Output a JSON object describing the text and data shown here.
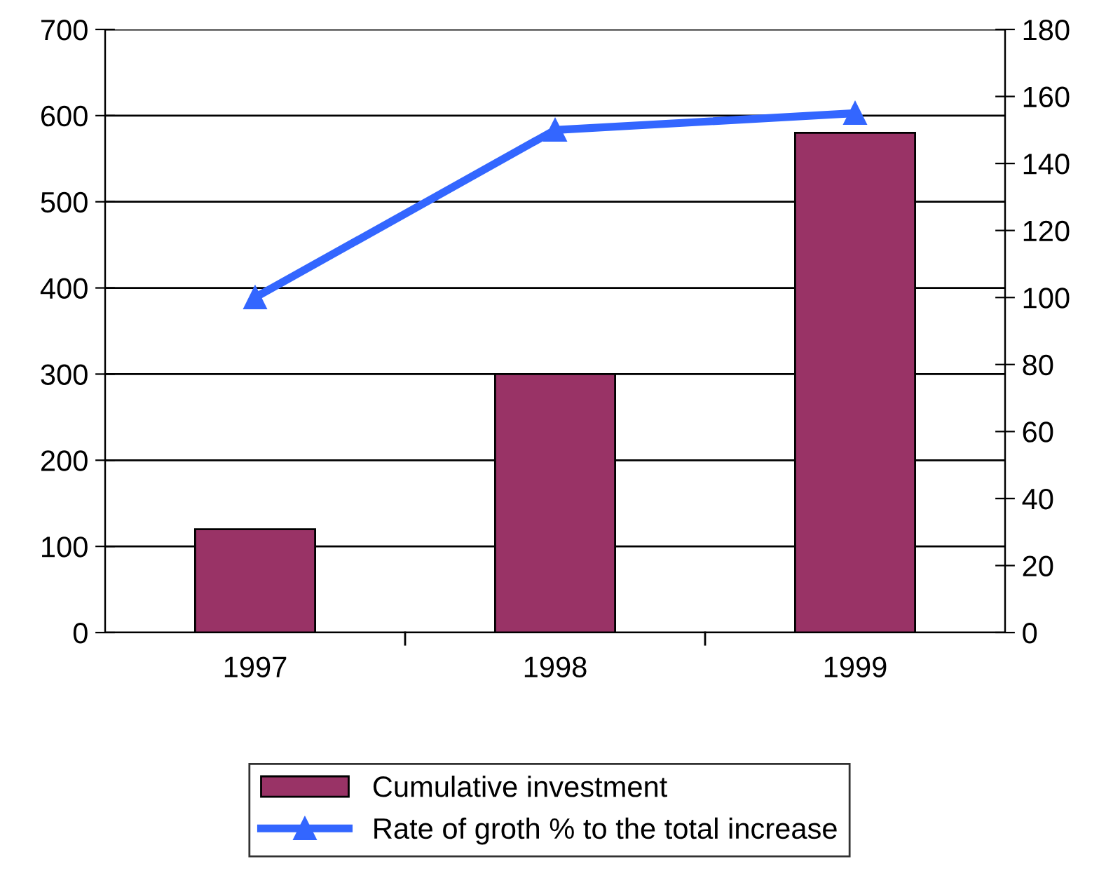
{
  "chart_data": {
    "type": "bar",
    "categories": [
      "1997",
      "1998",
      "1999"
    ],
    "series": [
      {
        "name": "Cumulative investment",
        "color": "#993366",
        "values": [
          120,
          300,
          580
        ]
      },
      {
        "name": "Rate of groth % to the total increase",
        "type": "line",
        "axis": "y2",
        "color": "#3366ff",
        "values": [
          100,
          150,
          155
        ],
        "marker": "triangle",
        "line_style": "solid"
      }
    ],
    "ylim": [
      0,
      700
    ],
    "yticks": [
      0,
      100,
      200,
      300,
      400,
      500,
      600,
      700
    ],
    "y2lim": [
      0,
      180
    ],
    "y2ticks": [
      0,
      20,
      40,
      60,
      80,
      100,
      120,
      140,
      160,
      180
    ],
    "grid": "y",
    "legend": "bottom"
  }
}
